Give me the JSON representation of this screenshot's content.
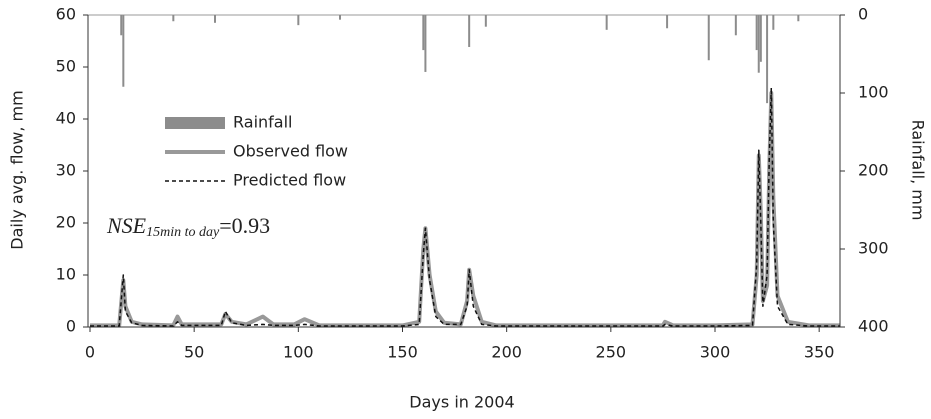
{
  "chart_data": {
    "type": "line",
    "x_label": "Days in 2004",
    "y_label": "Daily avg. flow, mm",
    "y2_label": "Rainfall, mm",
    "xlim": [
      0,
      360
    ],
    "xticks": [
      0,
      50,
      100,
      150,
      200,
      250,
      300,
      350
    ],
    "ylim": [
      0,
      60
    ],
    "yticks": [
      0,
      10,
      20,
      30,
      40,
      50,
      60
    ],
    "y2lim": [
      400,
      0
    ],
    "y2ticks": [
      0,
      100,
      200,
      300,
      400
    ],
    "legend": "left",
    "annotation": {
      "name": "NSE",
      "subscript": "15min to day",
      "value": "=0.93"
    },
    "series": [
      {
        "name": "Rainfall",
        "type": "bar",
        "axis": "y2",
        "color": "#8c8c8c",
        "x": [
          15,
          16,
          40,
          60,
          100,
          120,
          160,
          161,
          182,
          190,
          248,
          277,
          297,
          310,
          320,
          321,
          322,
          325,
          328,
          340
        ],
        "values": [
          26,
          92,
          8,
          10,
          13,
          6,
          45,
          73,
          41,
          15,
          19,
          17,
          58,
          26,
          45,
          74,
          60,
          113,
          19,
          8
        ]
      },
      {
        "name": "Observed flow",
        "type": "line",
        "axis": "y",
        "color": "#999999",
        "width": 4,
        "linestyle": "solid",
        "x": [
          0,
          14,
          16,
          17,
          20,
          25,
          40,
          42,
          44,
          55,
          63,
          65,
          68,
          75,
          83,
          88,
          98,
          103,
          110,
          150,
          158,
          160,
          161,
          163,
          166,
          170,
          178,
          181,
          182,
          184,
          188,
          195,
          250,
          275,
          276,
          280,
          300,
          318,
          320,
          321,
          322,
          323,
          325,
          326,
          327,
          328,
          330,
          335,
          345,
          360
        ],
        "values": [
          0.3,
          0.3,
          9,
          4,
          1,
          0.5,
          0.3,
          2,
          0.5,
          0.5,
          0.5,
          2.5,
          1,
          0.5,
          2,
          0.5,
          0.5,
          1.5,
          0.3,
          0.3,
          1,
          15,
          19,
          10,
          3,
          0.8,
          0.5,
          5,
          11,
          6,
          1,
          0.3,
          0.3,
          0.3,
          1,
          0.3,
          0.3,
          0.5,
          10,
          33,
          22,
          5,
          8,
          30,
          45,
          25,
          6,
          1,
          0.3,
          0.3
        ]
      },
      {
        "name": "Predicted flow",
        "type": "line",
        "axis": "y",
        "color": "#111111",
        "width": 1.5,
        "linestyle": "dashed",
        "x": [
          0,
          14,
          16,
          17,
          20,
          25,
          40,
          42,
          44,
          55,
          63,
          65,
          68,
          75,
          83,
          88,
          98,
          103,
          110,
          150,
          158,
          160,
          161,
          163,
          166,
          170,
          178,
          181,
          182,
          184,
          188,
          195,
          250,
          275,
          276,
          280,
          300,
          318,
          320,
          321,
          322,
          323,
          325,
          326,
          327,
          328,
          330,
          335,
          345,
          360
        ],
        "values": [
          0.2,
          0.2,
          10,
          3,
          0.8,
          0.3,
          0.2,
          1,
          0.3,
          0.3,
          0.3,
          3,
          0.8,
          0.3,
          0.5,
          0.3,
          0.3,
          0.5,
          0.2,
          0.2,
          0.5,
          14,
          19,
          9,
          2,
          0.5,
          0.5,
          4,
          11,
          4,
          0.5,
          0.2,
          0.2,
          0.2,
          0.5,
          0.2,
          0.2,
          0.3,
          12,
          34,
          20,
          4,
          10,
          32,
          46,
          20,
          4,
          0.5,
          0.2,
          0.2
        ]
      }
    ]
  }
}
